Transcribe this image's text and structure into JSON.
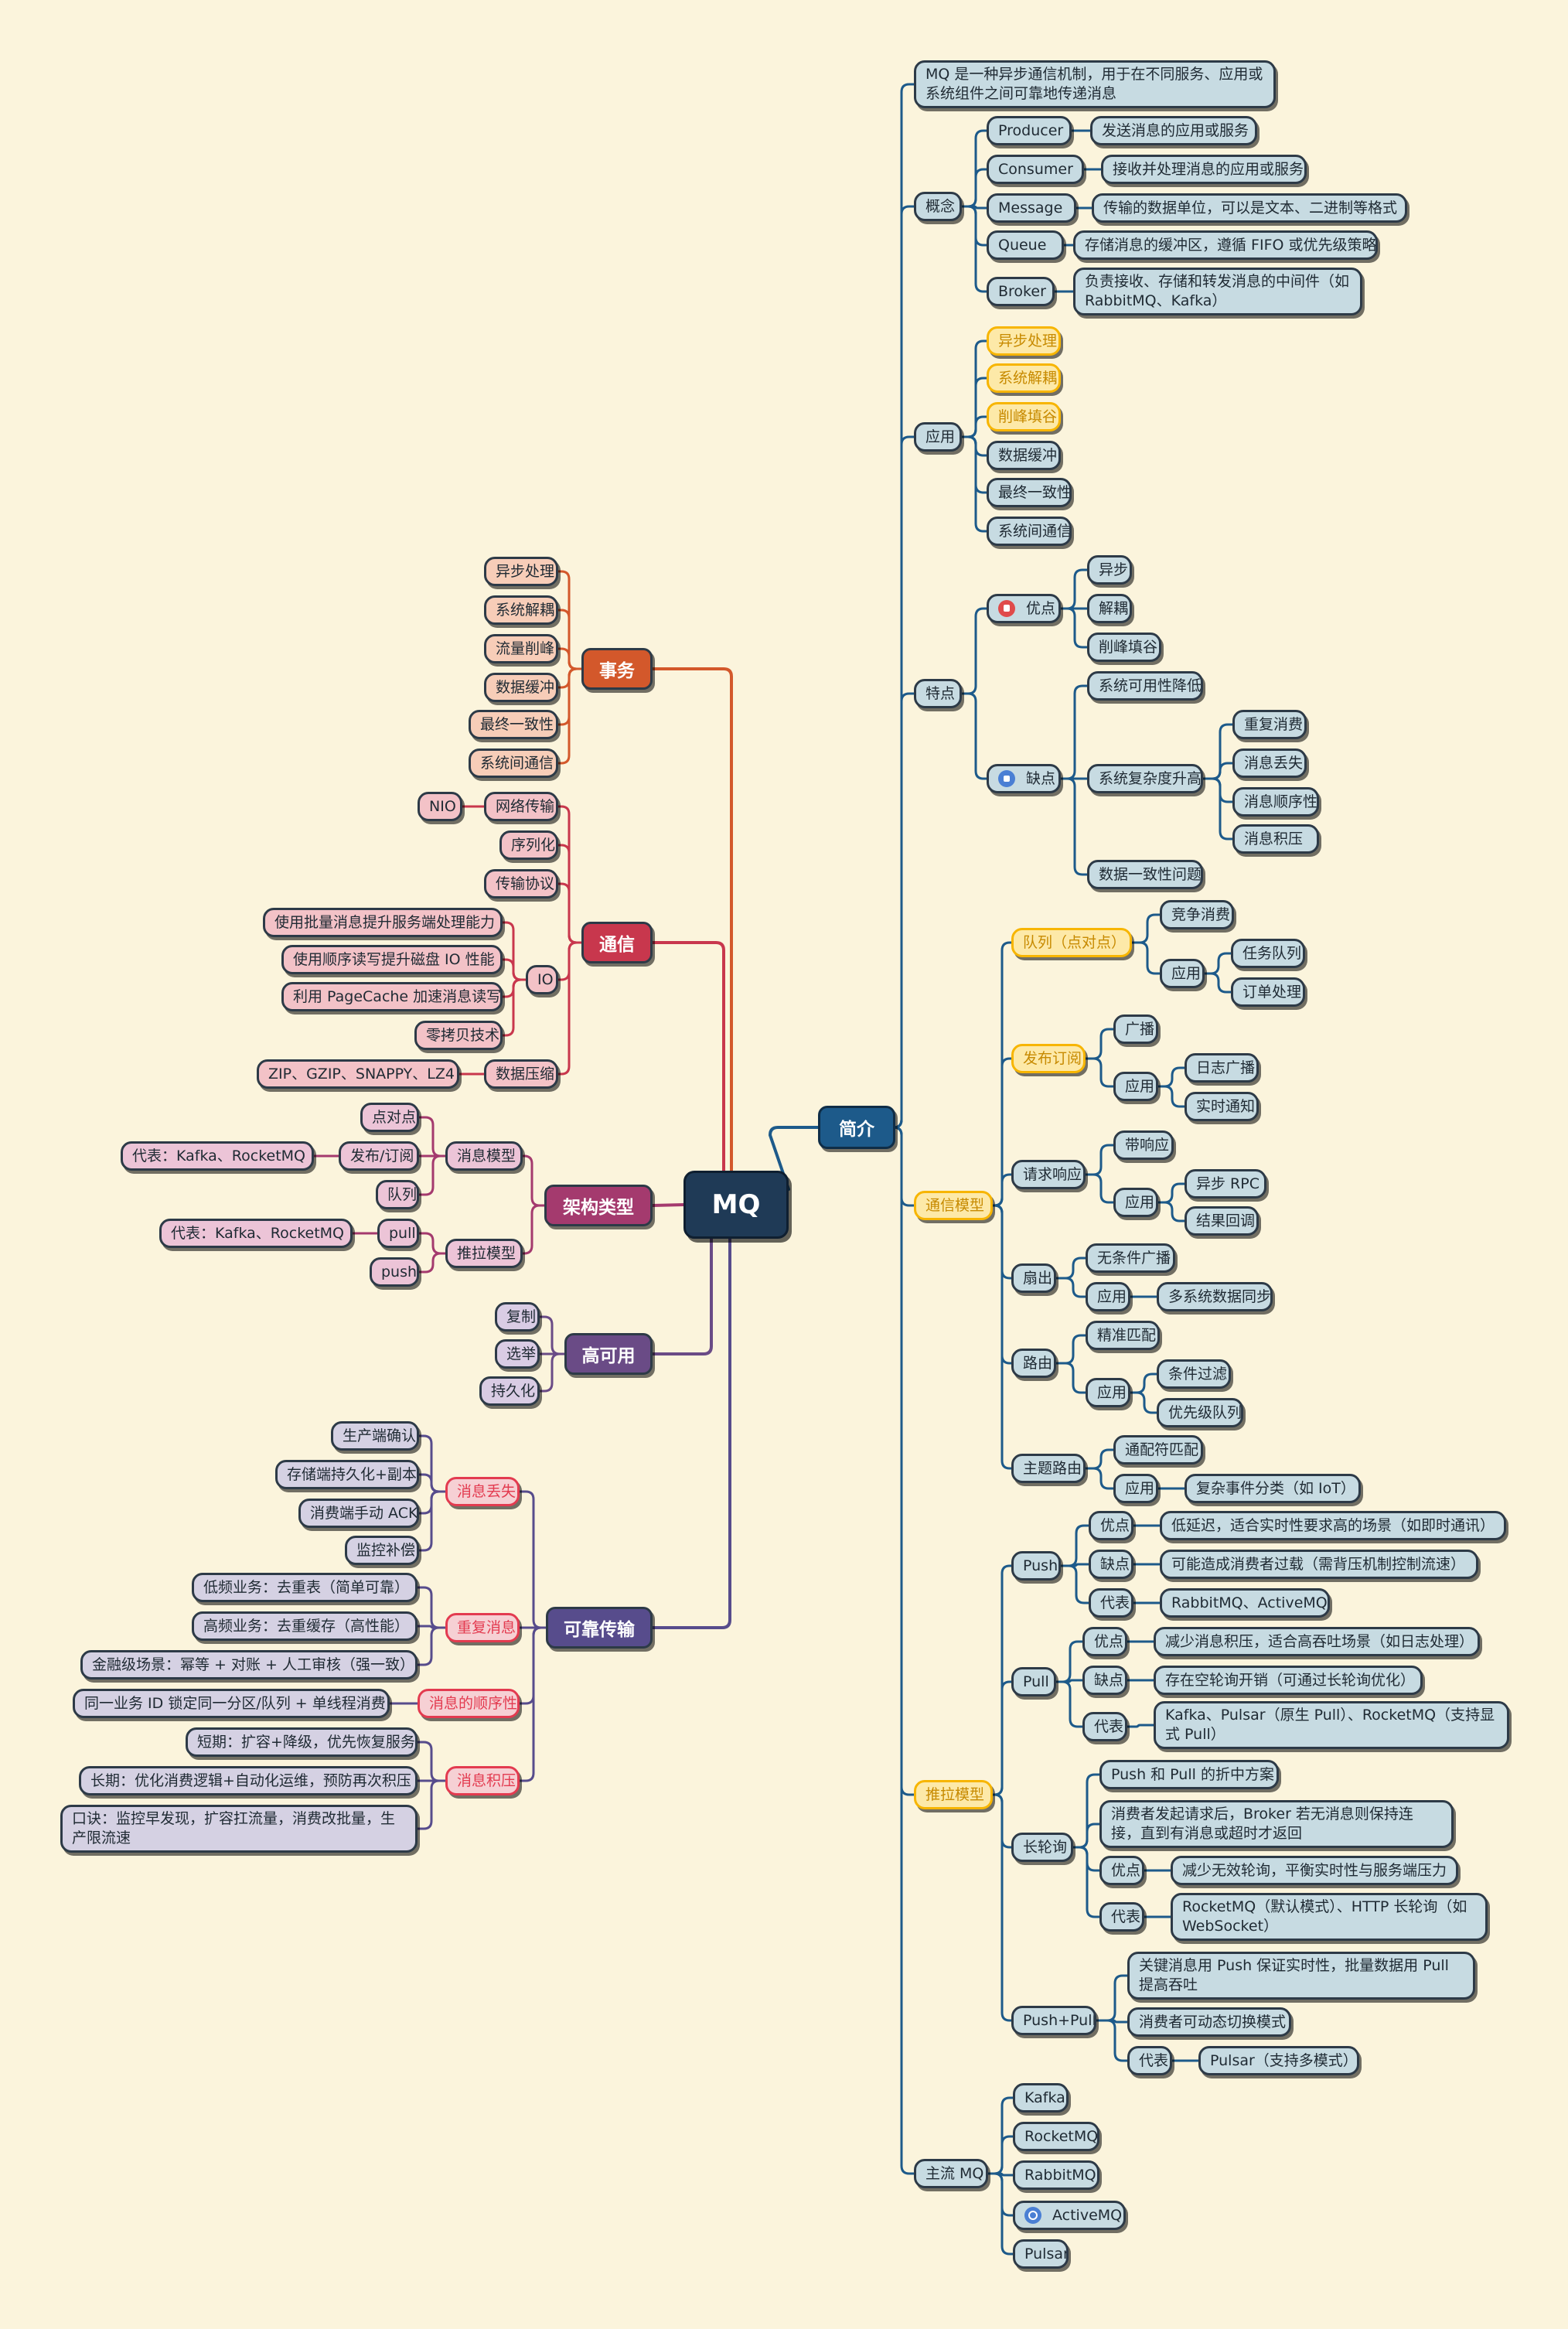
{
  "root": {
    "label": "MQ"
  },
  "colors": {
    "intro": "#1d5a8a",
    "intro_fill": "#c7dbe2",
    "yellow": "#f7b500",
    "yellow_fill": "#fde9a8",
    "transaction": "#d3582b",
    "transaction_fill": "#f7cdb8",
    "comm": "#c8374d",
    "comm_fill": "#f3c2c7",
    "arch": "#a43a6e",
    "arch_fill": "#ecc4d7",
    "ha": "#6a4b86",
    "ha_fill": "#d9cce4",
    "reliable": "#574c8c",
    "reliable_fill": "#d5d1e3",
    "reliable_child_red": "#e33b50"
  },
  "left": {
    "transaction": {
      "label": "事务",
      "items": [
        "异步处理",
        "系统解耦",
        "流量削峰",
        "数据缓冲",
        "最终一致性",
        "系统间通信"
      ]
    },
    "comm": {
      "label": "通信",
      "network": "网络传输",
      "nio": "NIO",
      "serialization": "序列化",
      "protocol": "传输协议",
      "io": "IO",
      "io_items": [
        "使用批量消息提升服务端处理能力",
        "使用顺序读写提升磁盘 IO 性能",
        "利用 PageCache 加速消息读写",
        "零拷贝技术"
      ],
      "compress": "数据压缩",
      "compress_algos": "ZIP、GZIP、SNAPPY、LZ4"
    },
    "arch": {
      "label": "架构类型",
      "msg_model": "消息模型",
      "p2p": "点对点",
      "pubsub": "发布/订阅",
      "queue": "队列",
      "pubsub_rep": "代表：Kafka、RocketMQ",
      "pushpull": "推拉模型",
      "pull": "pull",
      "push": "push",
      "pull_rep": "代表：Kafka、RocketMQ"
    },
    "ha": {
      "label": "高可用",
      "items": [
        "复制",
        "选举",
        "持久化"
      ]
    },
    "reliable": {
      "label": "可靠传输",
      "loss": "消息丢失",
      "loss_items": [
        "生产端确认",
        "存储端持久化+副本",
        "消费端手动 ACK",
        "监控补偿"
      ],
      "dup": "重复消息",
      "dup_items": [
        "低频业务：去重表（简单可靠）",
        "高频业务：去重缓存（高性能）",
        "金融级场景：幂等 + 对账 + 人工审核（强一致）"
      ],
      "order": "消息的顺序性",
      "order_item": "同一业务 ID 锁定同一分区/队列 + 单线程消费",
      "backlog": "消息积压",
      "backlog_items": [
        "短期：扩容+降级，优先恢复服务",
        "长期：优化消费逻辑+自动化运维，预防再次积压",
        "口诀：监控早发现，扩容扛流量，消费改批量，生产限流速"
      ]
    }
  },
  "right": {
    "intro": {
      "label": "简介"
    },
    "definition": "MQ 是一种异步通信机制，用于在不同服务、应用或系统组件之间可靠地传递消息",
    "concept": {
      "label": "概念",
      "items": [
        {
          "k": "Producer",
          "v": "发送消息的应用或服务"
        },
        {
          "k": "Consumer",
          "v": "接收并处理消息的应用或服务"
        },
        {
          "k": "Message",
          "v": "传输的数据单位，可以是文本、二进制等格式"
        },
        {
          "k": "Queue",
          "v": "存储消息的缓冲区，遵循 FIFO 或优先级策略"
        },
        {
          "k": "Broker",
          "v": "负责接收、存储和转发消息的中间件（如 RabbitMQ、Kafka）"
        }
      ]
    },
    "application": {
      "label": "应用",
      "items": [
        "异步处理",
        "系统解耦",
        "削峰填谷",
        "数据缓冲",
        "最终一致性",
        "系统间通信"
      ]
    },
    "feature": {
      "label": "特点",
      "pros": "优点",
      "pros_items": [
        "异步",
        "解耦",
        "削峰填谷"
      ],
      "cons": "缺点",
      "availability": "系统可用性降低",
      "complexity": "系统复杂度升高",
      "complexity_items": [
        "重复消费",
        "消息丢失",
        "消息顺序性",
        "消息积压"
      ],
      "consistency": "数据一致性问题"
    },
    "comm_model": {
      "label": "通信模型",
      "queue": "队列（点对点）",
      "compete": "竞争消费",
      "app": "应用",
      "queue_apps": [
        "任务队列",
        "订单处理"
      ],
      "pubsub": "发布订阅",
      "broadcast": "广播",
      "pubsub_apps": [
        "日志广播",
        "实时通知"
      ],
      "reqresp": "请求响应",
      "with_resp": "带响应",
      "reqresp_apps": [
        "异步 RPC",
        "结果回调"
      ],
      "fanout": "扇出",
      "fanout_cond": "无条件广播",
      "fanout_app": "多系统数据同步",
      "routing": "路由",
      "exact": "精准匹配",
      "routing_apps": [
        "条件过滤",
        "优先级队列"
      ],
      "topic": "主题路由",
      "wildcard": "通配符匹配",
      "topic_app": "复杂事件分类（如 IoT）"
    },
    "pushpull": {
      "label": "推拉模型",
      "pros": "优点",
      "cons": "缺点",
      "rep": "代表",
      "push": "Push",
      "push_pros": "低延迟，适合实时性要求高的场景（如即时通讯）",
      "push_cons": "可能造成消费者过载（需背压机制控制流速）",
      "push_rep": "RabbitMQ、ActiveMQ",
      "pull": "Pull",
      "pull_pros": "减少消息积压，适合高吞吐场景（如日志处理）",
      "pull_cons": "存在空轮询开销（可通过长轮询优化）",
      "pull_rep": "Kafka、Pulsar（原生 Pull）、RocketMQ（支持显式 Pull）",
      "longpoll": "长轮询",
      "lp_tradeoff": "Push 和 Pull 的折中方案",
      "lp_desc": "消费者发起请求后，Broker 若无消息则保持连接，直到有消息或超时才返回",
      "lp_pros": "减少无效轮询，平衡实时性与服务端压力",
      "lp_rep": "RocketMQ（默认模式）、HTTP 长轮询（如 WebSocket）",
      "pp": "Push+Pull",
      "pp_desc": "关键消息用 Push 保证实时性，批量数据用 Pull 提高吞吐",
      "pp_switch": "消费者可动态切换模式",
      "pp_rep": "Pulsar（支持多模式）"
    },
    "mainstream": {
      "label": "主流 MQ",
      "items": [
        "Kafka",
        "RocketMQ",
        "RabbitMQ",
        "ActiveMQ",
        "Pulsar"
      ],
      "icons": [
        "",
        "",
        "",
        "mq-icon",
        ""
      ]
    }
  }
}
